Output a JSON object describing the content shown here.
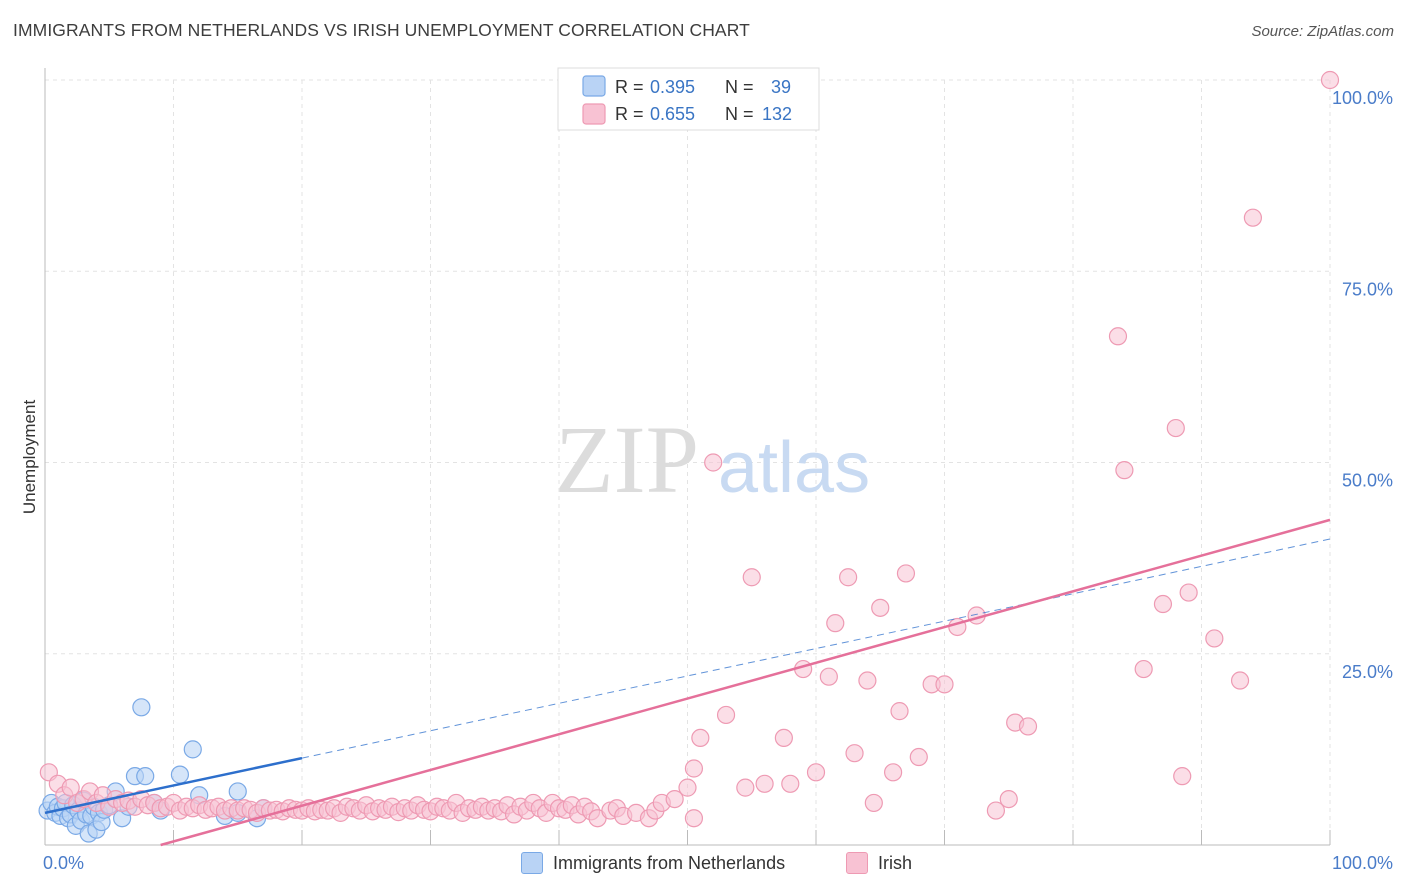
{
  "header": {
    "title": "IMMIGRANTS FROM NETHERLANDS VS IRISH UNEMPLOYMENT CORRELATION CHART",
    "source": "Source: ZipAtlas.com"
  },
  "watermark": {
    "zip": "ZIP",
    "atlas": "atlas"
  },
  "colors": {
    "blue_fill": "#b9d3f5",
    "blue_stroke": "#7aa9e6",
    "blue_line": "#2d6fcc",
    "pink_fill": "#f8c2d3",
    "pink_stroke": "#ee9ab3",
    "pink_line": "#e5709a",
    "tick_label": "#4a7cc9",
    "grid": "#e3e3e3"
  },
  "legend_box": {
    "rows": [
      {
        "r_label": "R = ",
        "r_value": "0.395",
        "n_label": "N = ",
        "n_value": "39"
      },
      {
        "r_label": "R = ",
        "r_value": "0.655",
        "n_label": "N = ",
        "n_value": "132"
      }
    ]
  },
  "chart_data": {
    "type": "scatter",
    "title": "IMMIGRANTS FROM NETHERLANDS VS IRISH UNEMPLOYMENT CORRELATION CHART",
    "xlabel": "",
    "ylabel": "Unemployment",
    "xlim": [
      0,
      100
    ],
    "ylim": [
      0,
      100
    ],
    "x_tick_labels": [
      "0.0%",
      "100.0%"
    ],
    "y_ticks": [
      25,
      50,
      75,
      100
    ],
    "y_tick_labels": [
      "25.0%",
      "50.0%",
      "75.0%",
      "100.0%"
    ],
    "grid": true,
    "legend_position": "bottom",
    "series": [
      {
        "name": "Immigrants from Netherlands",
        "r": 0.395,
        "n": 39,
        "trend": {
          "x0": 0,
          "y0": 4.2,
          "x1": 100,
          "y1": 40,
          "solid_until_x": 20
        },
        "points": [
          [
            0.2,
            4.5
          ],
          [
            0.5,
            5.5
          ],
          [
            0.8,
            4.2
          ],
          [
            1.0,
            5.0
          ],
          [
            1.2,
            3.8
          ],
          [
            1.4,
            4.8
          ],
          [
            1.6,
            5.5
          ],
          [
            1.8,
            3.5
          ],
          [
            2.0,
            4.0
          ],
          [
            2.2,
            5.2
          ],
          [
            2.4,
            2.5
          ],
          [
            2.6,
            4.5
          ],
          [
            2.8,
            3.2
          ],
          [
            3.0,
            5.8
          ],
          [
            3.2,
            4.0
          ],
          [
            3.4,
            1.5
          ],
          [
            3.6,
            3.8
          ],
          [
            3.8,
            5.0
          ],
          [
            4.0,
            2.0
          ],
          [
            4.2,
            4.2
          ],
          [
            4.4,
            3.0
          ],
          [
            4.6,
            4.6
          ],
          [
            5.0,
            5.2
          ],
          [
            5.5,
            7.0
          ],
          [
            6.0,
            3.5
          ],
          [
            6.5,
            5.0
          ],
          [
            7.0,
            9.0
          ],
          [
            7.5,
            18.0
          ],
          [
            7.8,
            9.0
          ],
          [
            8.5,
            5.5
          ],
          [
            9.0,
            4.5
          ],
          [
            10.5,
            9.2
          ],
          [
            11.5,
            12.5
          ],
          [
            12.0,
            6.5
          ],
          [
            14.0,
            3.8
          ],
          [
            15.0,
            4.2
          ],
          [
            16.5,
            3.5
          ],
          [
            17.0,
            4.8
          ],
          [
            15.0,
            7.0
          ]
        ]
      },
      {
        "name": "Irish",
        "r": 0.655,
        "n": 132,
        "trend": {
          "x0": 9,
          "y0": 0,
          "x1": 100,
          "y1": 42.5
        },
        "points": [
          [
            0.3,
            9.5
          ],
          [
            1.0,
            8.0
          ],
          [
            1.5,
            6.5
          ],
          [
            2.0,
            7.5
          ],
          [
            2.5,
            5.5
          ],
          [
            3.0,
            6.0
          ],
          [
            3.5,
            7.0
          ],
          [
            4.0,
            5.5
          ],
          [
            4.5,
            6.5
          ],
          [
            5.0,
            5.0
          ],
          [
            5.5,
            6.0
          ],
          [
            6.0,
            5.5
          ],
          [
            6.5,
            5.8
          ],
          [
            7.0,
            5.0
          ],
          [
            7.5,
            6.0
          ],
          [
            8.0,
            5.2
          ],
          [
            8.5,
            5.5
          ],
          [
            9.0,
            4.8
          ],
          [
            9.5,
            5.0
          ],
          [
            10.0,
            5.5
          ],
          [
            10.5,
            4.5
          ],
          [
            11.0,
            5.0
          ],
          [
            11.5,
            4.8
          ],
          [
            12.0,
            5.2
          ],
          [
            12.5,
            4.6
          ],
          [
            13.0,
            4.8
          ],
          [
            13.5,
            5.0
          ],
          [
            14.0,
            4.5
          ],
          [
            14.5,
            4.8
          ],
          [
            15.0,
            4.5
          ],
          [
            15.5,
            4.8
          ],
          [
            16.0,
            4.6
          ],
          [
            16.5,
            4.2
          ],
          [
            17.0,
            4.8
          ],
          [
            17.5,
            4.5
          ],
          [
            18.0,
            4.6
          ],
          [
            18.5,
            4.4
          ],
          [
            19.0,
            4.8
          ],
          [
            19.5,
            4.6
          ],
          [
            20.0,
            4.5
          ],
          [
            20.5,
            4.8
          ],
          [
            21.0,
            4.4
          ],
          [
            21.5,
            4.6
          ],
          [
            22.0,
            4.5
          ],
          [
            22.5,
            4.8
          ],
          [
            23.0,
            4.2
          ],
          [
            23.5,
            5.0
          ],
          [
            24.0,
            4.8
          ],
          [
            24.5,
            4.5
          ],
          [
            25.0,
            5.2
          ],
          [
            25.5,
            4.4
          ],
          [
            26.0,
            4.8
          ],
          [
            26.5,
            4.6
          ],
          [
            27.0,
            5.0
          ],
          [
            27.5,
            4.3
          ],
          [
            28.0,
            4.8
          ],
          [
            28.5,
            4.5
          ],
          [
            29.0,
            5.2
          ],
          [
            29.5,
            4.6
          ],
          [
            30.0,
            4.4
          ],
          [
            30.5,
            5.0
          ],
          [
            31.0,
            4.8
          ],
          [
            31.5,
            4.5
          ],
          [
            32.0,
            5.5
          ],
          [
            32.5,
            4.2
          ],
          [
            33.0,
            4.8
          ],
          [
            33.5,
            4.6
          ],
          [
            34.0,
            5.0
          ],
          [
            34.5,
            4.5
          ],
          [
            35.0,
            4.8
          ],
          [
            35.5,
            4.4
          ],
          [
            36.0,
            5.2
          ],
          [
            36.5,
            4.0
          ],
          [
            37.0,
            5.0
          ],
          [
            37.5,
            4.5
          ],
          [
            38.0,
            5.5
          ],
          [
            38.5,
            4.8
          ],
          [
            39.0,
            4.2
          ],
          [
            39.5,
            5.5
          ],
          [
            40.0,
            4.8
          ],
          [
            40.5,
            4.6
          ],
          [
            41.0,
            5.2
          ],
          [
            41.5,
            4.0
          ],
          [
            42.0,
            5.0
          ],
          [
            42.5,
            4.4
          ],
          [
            43.0,
            3.5
          ],
          [
            44.0,
            4.5
          ],
          [
            44.5,
            4.8
          ],
          [
            45.0,
            3.8
          ],
          [
            46.0,
            4.2
          ],
          [
            47.0,
            3.5
          ],
          [
            47.5,
            4.5
          ],
          [
            48.0,
            5.5
          ],
          [
            49.0,
            6.0
          ],
          [
            50.5,
            3.5
          ],
          [
            50.0,
            7.5
          ],
          [
            50.5,
            10.0
          ],
          [
            51.0,
            14.0
          ],
          [
            52.0,
            50.0
          ],
          [
            53.0,
            17.0
          ],
          [
            54.5,
            7.5
          ],
          [
            55.0,
            35.0
          ],
          [
            56.0,
            8.0
          ],
          [
            57.5,
            14.0
          ],
          [
            58.0,
            8.0
          ],
          [
            59.0,
            23.0
          ],
          [
            60.0,
            9.5
          ],
          [
            61.0,
            22.0
          ],
          [
            61.5,
            29.0
          ],
          [
            62.5,
            35.0
          ],
          [
            63.0,
            12.0
          ],
          [
            64.0,
            21.5
          ],
          [
            64.5,
            5.5
          ],
          [
            65.0,
            31.0
          ],
          [
            66.0,
            9.5
          ],
          [
            66.5,
            17.5
          ],
          [
            67.0,
            35.5
          ],
          [
            68.0,
            11.5
          ],
          [
            69.0,
            21.0
          ],
          [
            70.0,
            21.0
          ],
          [
            71.0,
            28.5
          ],
          [
            72.5,
            30.0
          ],
          [
            74.0,
            4.5
          ],
          [
            75.0,
            6.0
          ],
          [
            75.5,
            16.0
          ],
          [
            76.5,
            15.5
          ],
          [
            83.5,
            66.5
          ],
          [
            84.0,
            49.0
          ],
          [
            85.5,
            23.0
          ],
          [
            87.0,
            31.5
          ],
          [
            88.0,
            54.5
          ],
          [
            88.5,
            9.0
          ],
          [
            89.0,
            33.0
          ],
          [
            91.0,
            27.0
          ],
          [
            93.0,
            21.5
          ],
          [
            94.0,
            82.0
          ],
          [
            100.0,
            100.0
          ]
        ]
      }
    ]
  }
}
